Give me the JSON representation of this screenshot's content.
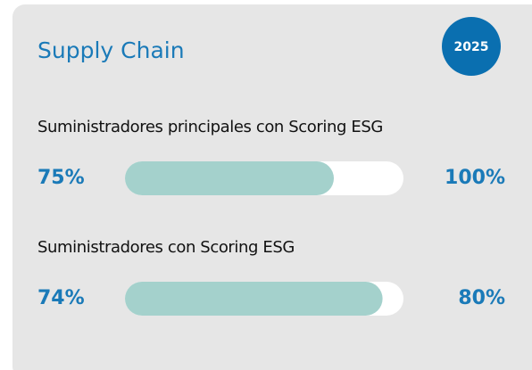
{
  "header": {
    "title": "Supply Chain",
    "badge": "2025"
  },
  "items": [
    {
      "label": "Suministradores principales con Scoring ESG",
      "value": 75,
      "value_label": "75%",
      "target": 100,
      "target_label": "100%"
    },
    {
      "label": "Suministradores con Scoring ESG",
      "value": 74,
      "value_label": "74%",
      "target": 80,
      "target_label": "80%"
    }
  ]
}
